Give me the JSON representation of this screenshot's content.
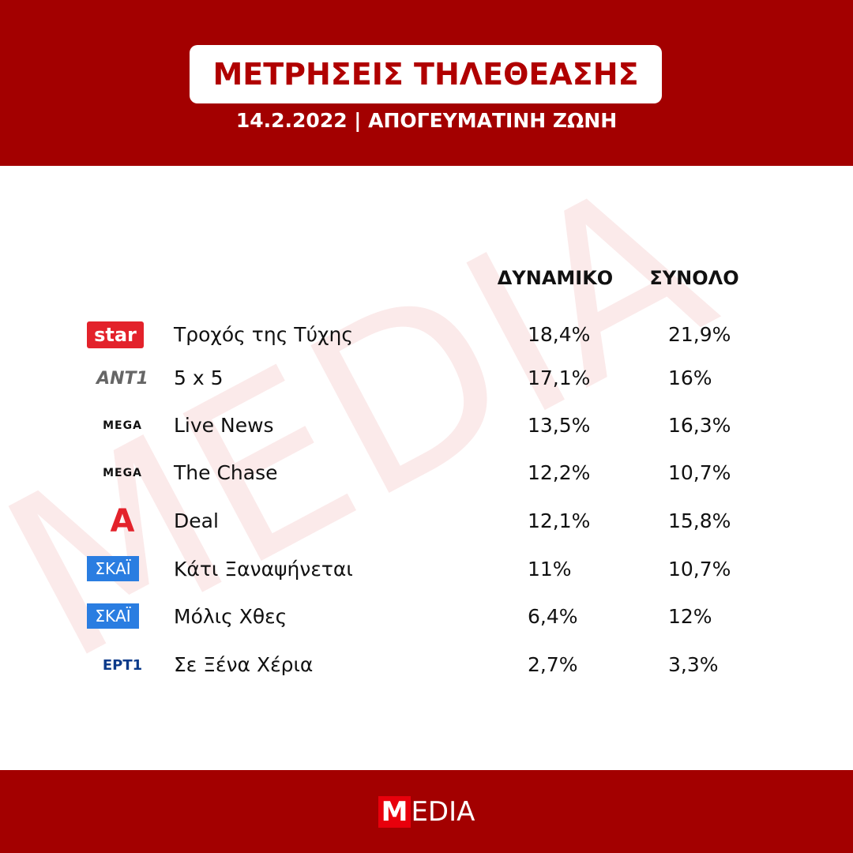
{
  "header": {
    "title": "ΜΕΤΡΗΣΕΙΣ ΤΗΛΕΘΕΑΣΗΣ",
    "subtitle": "14.2.2022 | ΑΠΟΓΕΥΜΑΤΙΝΗ ΖΩΝΗ"
  },
  "watermark": "MEDIA",
  "table": {
    "columns": [
      "ΔΥΝΑΜΙΚΟ",
      "ΣΥΝΟΛΟ"
    ],
    "rows": [
      {
        "channel": "star",
        "program": "Τροχός της Τύχης",
        "values": [
          "18,4%",
          "21,9%"
        ]
      },
      {
        "channel": "ANT1",
        "program": "5 x 5",
        "values": [
          "17,1%",
          "16%"
        ]
      },
      {
        "channel": "MEGA",
        "program": "Live News",
        "values": [
          "13,5%",
          "16,3%"
        ]
      },
      {
        "channel": "MEGA",
        "program": "The Chase",
        "values": [
          "12,2%",
          "10,7%"
        ]
      },
      {
        "channel": "Α",
        "program": "Deal",
        "values": [
          "12,1%",
          "15,8%"
        ]
      },
      {
        "channel": "ΣΚΑΪ",
        "program": "Κάτι Ξαναψήνεται",
        "values": [
          "11%",
          "10,7%"
        ]
      },
      {
        "channel": "ΣΚΑΪ",
        "program": "Μόλις Χθες",
        "values": [
          "6,4%",
          "12%"
        ]
      },
      {
        "channel": "ΕΡΤ1",
        "program": "Σε Ξένα Χέρια",
        "values": [
          "2,7%",
          "3,3%"
        ]
      }
    ]
  },
  "footer": {
    "logo_mark": "M",
    "logo_rest": "EDIA"
  }
}
